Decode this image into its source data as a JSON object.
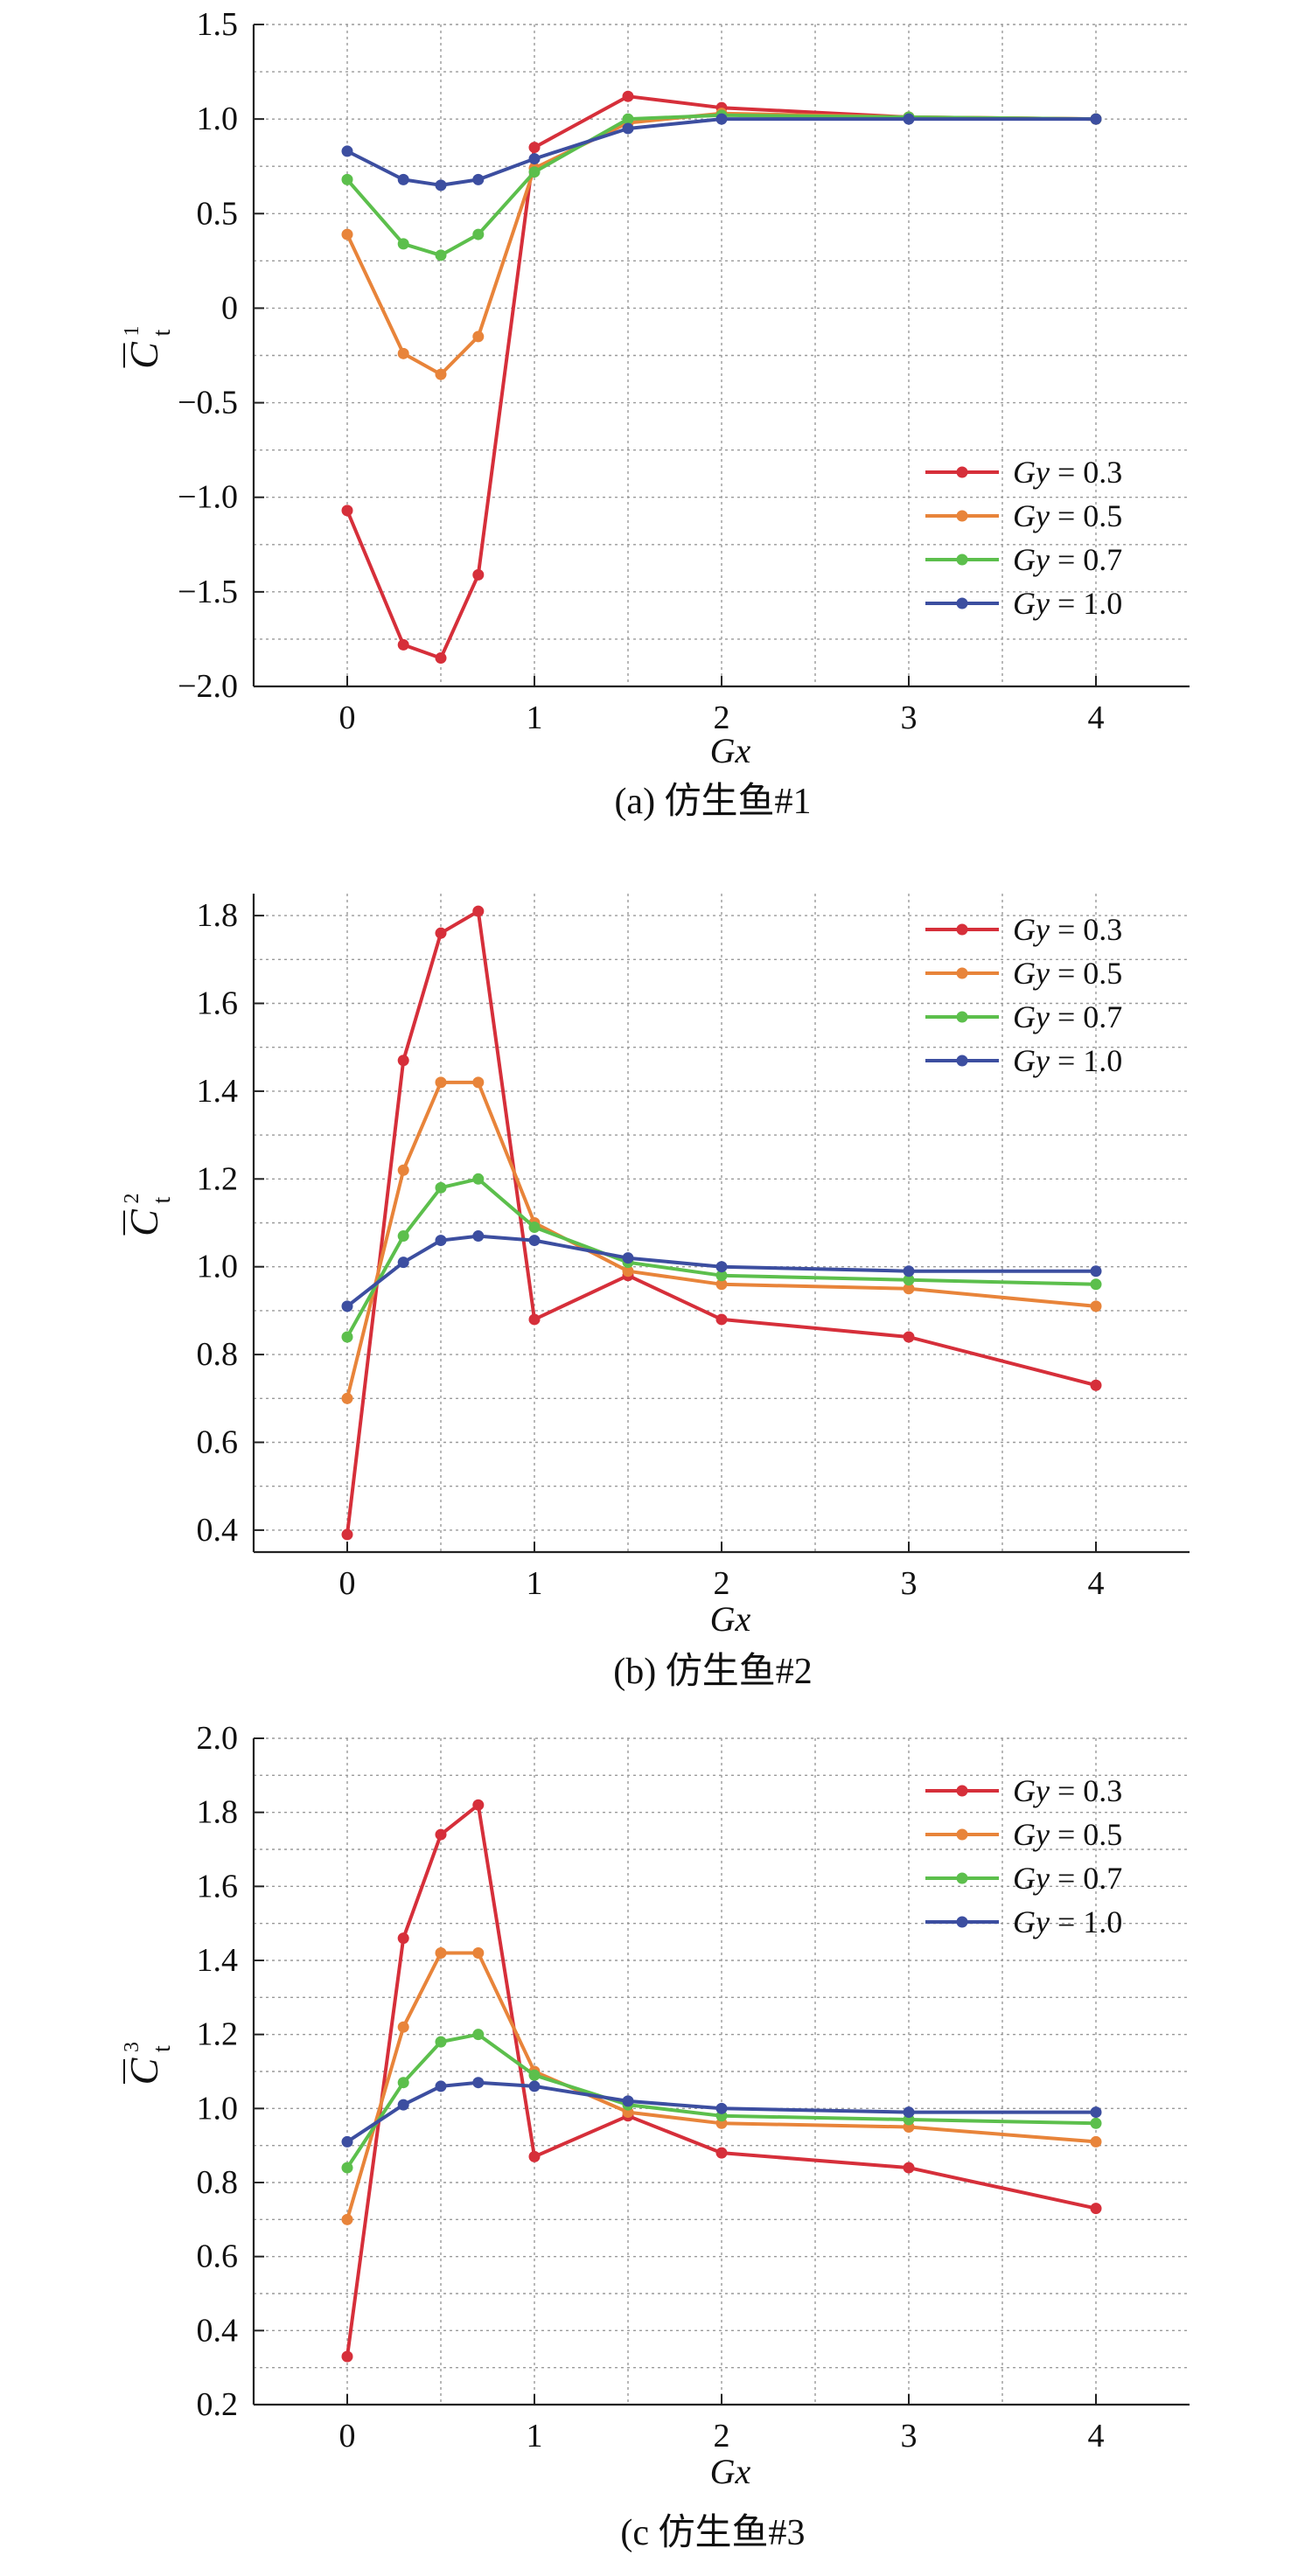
{
  "chart_data": [
    {
      "type": "line",
      "caption": "(a) 仿生鱼#1",
      "xlabel": "Gx",
      "ylabel": "C̄t¹",
      "ylabel_sup": "1",
      "x": [
        0,
        0.3,
        0.5,
        0.7,
        1,
        1.5,
        2,
        3,
        4
      ],
      "xticks": [
        0,
        1,
        2,
        3,
        4
      ],
      "xtick_labels": [
        "0",
        "1",
        "2",
        "3",
        "4"
      ],
      "xlim": [
        -0.5,
        4.5
      ],
      "yticks": [
        -2.0,
        -1.5,
        -1.0,
        -0.5,
        0,
        0.5,
        1.0,
        1.5
      ],
      "ytick_labels": [
        "−2.0",
        "−1.5",
        "−1.0",
        "−0.5",
        "0",
        "0.5",
        "1.0",
        "1.5"
      ],
      "ylim": [
        -2.0,
        1.5
      ],
      "grid": true,
      "legend_position": "lower-right",
      "series": [
        {
          "name": "Gy = 0.3",
          "color": "#d62f3a",
          "values": [
            -1.07,
            -1.78,
            -1.85,
            -1.41,
            0.85,
            1.12,
            1.06,
            1.01,
            1.0
          ]
        },
        {
          "name": "Gy = 0.5",
          "color": "#e8843a",
          "values": [
            0.39,
            -0.24,
            -0.35,
            -0.15,
            0.74,
            0.98,
            1.03,
            1.01,
            1.0
          ]
        },
        {
          "name": "Gy = 0.7",
          "color": "#5cbf4c",
          "values": [
            0.68,
            0.34,
            0.28,
            0.39,
            0.72,
            1.0,
            1.02,
            1.01,
            1.0
          ]
        },
        {
          "name": "Gy = 1.0",
          "color": "#3c4ea0",
          "values": [
            0.83,
            0.68,
            0.65,
            0.68,
            0.79,
            0.95,
            1.0,
            1.0,
            1.0
          ]
        }
      ]
    },
    {
      "type": "line",
      "caption": "(b) 仿生鱼#2",
      "xlabel": "Gx",
      "ylabel": "C̄t²",
      "ylabel_sup": "2",
      "x": [
        0,
        0.3,
        0.5,
        0.7,
        1,
        1.5,
        2,
        3,
        4
      ],
      "xticks": [
        0,
        1,
        2,
        3,
        4
      ],
      "xtick_labels": [
        "0",
        "1",
        "2",
        "3",
        "4"
      ],
      "xlim": [
        -0.5,
        4.5
      ],
      "yticks": [
        0.4,
        0.6,
        0.8,
        1.0,
        1.2,
        1.4,
        1.6,
        1.8
      ],
      "ytick_labels": [
        "0.4",
        "0.6",
        "0.8",
        "1.0",
        "1.2",
        "1.4",
        "1.6",
        "1.8"
      ],
      "ylim": [
        0.35,
        1.85
      ],
      "grid": true,
      "legend_position": "top-right",
      "series": [
        {
          "name": "Gy = 0.3",
          "color": "#d62f3a",
          "values": [
            0.39,
            1.47,
            1.76,
            1.81,
            0.88,
            0.98,
            0.88,
            0.84,
            0.73
          ]
        },
        {
          "name": "Gy = 0.5",
          "color": "#e8843a",
          "values": [
            0.7,
            1.22,
            1.42,
            1.42,
            1.1,
            0.99,
            0.96,
            0.95,
            0.91
          ]
        },
        {
          "name": "Gy = 0.7",
          "color": "#5cbf4c",
          "values": [
            0.84,
            1.07,
            1.18,
            1.2,
            1.09,
            1.01,
            0.98,
            0.97,
            0.96
          ]
        },
        {
          "name": "Gy = 1.0",
          "color": "#3c4ea0",
          "values": [
            0.91,
            1.01,
            1.06,
            1.07,
            1.06,
            1.02,
            1.0,
            0.99,
            0.99
          ]
        }
      ]
    },
    {
      "type": "line",
      "caption": "(c 仿生鱼#3",
      "xlabel": "Gx",
      "ylabel": "C̄t³",
      "ylabel_sup": "3",
      "x": [
        0,
        0.3,
        0.5,
        0.7,
        1,
        1.5,
        2,
        3,
        4
      ],
      "xticks": [
        0,
        1,
        2,
        3,
        4
      ],
      "xtick_labels": [
        "0",
        "1",
        "2",
        "3",
        "4"
      ],
      "xlim": [
        -0.5,
        4.5
      ],
      "yticks": [
        0.2,
        0.4,
        0.6,
        0.8,
        1.0,
        1.2,
        1.4,
        1.6,
        1.8,
        2.0
      ],
      "ytick_labels": [
        "0.2",
        "0.4",
        "0.6",
        "0.8",
        "1.0",
        "1.2",
        "1.4",
        "1.6",
        "1.8",
        "2.0"
      ],
      "ylim": [
        0.2,
        2.0
      ],
      "grid": true,
      "legend_position": "top-right",
      "series": [
        {
          "name": "Gy = 0.3",
          "color": "#d62f3a",
          "values": [
            0.33,
            1.46,
            1.74,
            1.82,
            0.87,
            0.98,
            0.88,
            0.84,
            0.73
          ]
        },
        {
          "name": "Gy = 0.5",
          "color": "#e8843a",
          "values": [
            0.7,
            1.22,
            1.42,
            1.42,
            1.1,
            0.99,
            0.96,
            0.95,
            0.91
          ]
        },
        {
          "name": "Gy = 0.7",
          "color": "#5cbf4c",
          "values": [
            0.84,
            1.07,
            1.18,
            1.2,
            1.09,
            1.01,
            0.98,
            0.97,
            0.96
          ]
        },
        {
          "name": "Gy = 1.0",
          "color": "#3c4ea0",
          "values": [
            0.91,
            1.01,
            1.06,
            1.07,
            1.06,
            1.02,
            1.0,
            0.99,
            0.99
          ]
        }
      ]
    }
  ]
}
